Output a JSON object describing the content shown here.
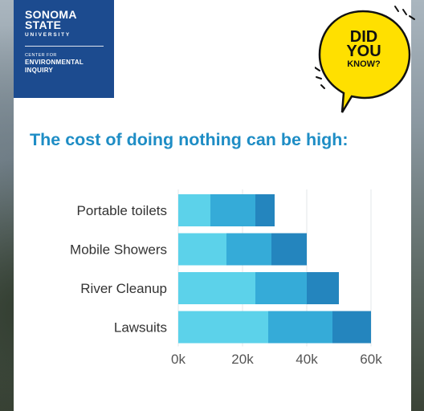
{
  "brand": {
    "line1": "SONOMA",
    "line2": "STATE",
    "line3": "UNIVERSITY",
    "center_line1": "CENTER FOR",
    "center_line2": "ENVIRONMENTAL",
    "center_line3": "INQUIRY",
    "color": "#1c4b8f"
  },
  "badge": {
    "line1": "DID",
    "line2": "YOU",
    "line3": "KNOW?",
    "color": "#ffe000"
  },
  "headline": "The cost of doing nothing can be high:",
  "chart_data": {
    "type": "bar",
    "orientation": "horizontal",
    "stacked": true,
    "categories": [
      "Portable toilets",
      "Mobile Showers",
      "River Cleanup",
      "Lawsuits"
    ],
    "series": [
      {
        "values": [
          10000,
          15000,
          24000,
          28000
        ],
        "color": "#5cd2ea"
      },
      {
        "values": [
          14000,
          14000,
          16000,
          20000
        ],
        "color": "#35abd8"
      },
      {
        "values": [
          6000,
          11000,
          10000,
          12000
        ],
        "color": "#2485be"
      }
    ],
    "xticks": [
      "0k",
      "20k",
      "40k",
      "60k"
    ],
    "xlim": [
      0,
      60000
    ],
    "grid": true
  }
}
